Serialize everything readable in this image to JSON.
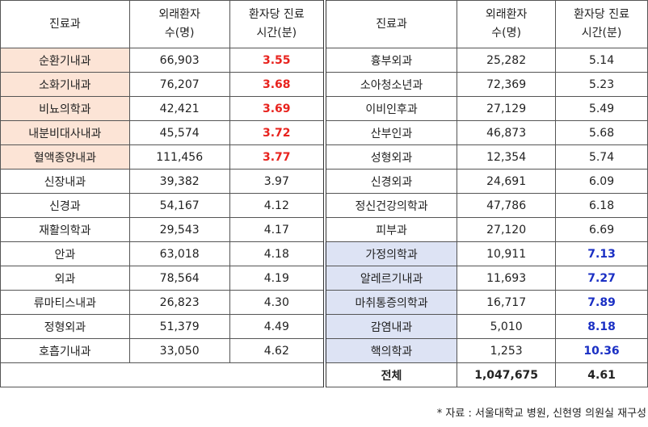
{
  "headers": {
    "dept": "진료과",
    "outpatients_1": "외래환자",
    "outpatients_2": "수(명)",
    "time_1": "환자당 진료",
    "time_2": "시간(분)"
  },
  "left_rows": [
    {
      "dept": "순환기내과",
      "patients": "66,903",
      "time": "3.55",
      "highlight": "low"
    },
    {
      "dept": "소화기내과",
      "patients": "76,207",
      "time": "3.68",
      "highlight": "low"
    },
    {
      "dept": "비뇨의학과",
      "patients": "42,421",
      "time": "3.69",
      "highlight": "low"
    },
    {
      "dept": "내분비대사내과",
      "patients": "45,574",
      "time": "3.72",
      "highlight": "low"
    },
    {
      "dept": "혈액종양내과",
      "patients": "111,456",
      "time": "3.77",
      "highlight": "low"
    },
    {
      "dept": "신장내과",
      "patients": "39,382",
      "time": "3.97",
      "highlight": "none"
    },
    {
      "dept": "신경과",
      "patients": "54,167",
      "time": "4.12",
      "highlight": "none"
    },
    {
      "dept": "재활의학과",
      "patients": "29,543",
      "time": "4.17",
      "highlight": "none"
    },
    {
      "dept": "안과",
      "patients": "63,018",
      "time": "4.18",
      "highlight": "none"
    },
    {
      "dept": "외과",
      "patients": "78,564",
      "time": "4.19",
      "highlight": "none"
    },
    {
      "dept": "류마티스내과",
      "patients": "26,823",
      "time": "4.30",
      "highlight": "none"
    },
    {
      "dept": "정형외과",
      "patients": "51,379",
      "time": "4.49",
      "highlight": "none"
    },
    {
      "dept": "호흡기내과",
      "patients": "33,050",
      "time": "4.62",
      "highlight": "none"
    }
  ],
  "right_rows": [
    {
      "dept": "흉부외과",
      "patients": "25,282",
      "time": "5.14",
      "highlight": "none"
    },
    {
      "dept": "소아청소년과",
      "patients": "72,369",
      "time": "5.23",
      "highlight": "none"
    },
    {
      "dept": "이비인후과",
      "patients": "27,129",
      "time": "5.49",
      "highlight": "none"
    },
    {
      "dept": "산부인과",
      "patients": "46,873",
      "time": "5.68",
      "highlight": "none"
    },
    {
      "dept": "성형외과",
      "patients": "12,354",
      "time": "5.74",
      "highlight": "none"
    },
    {
      "dept": "신경외과",
      "patients": "24,691",
      "time": "6.09",
      "highlight": "none"
    },
    {
      "dept": "정신건강의학과",
      "patients": "47,786",
      "time": "6.18",
      "highlight": "none"
    },
    {
      "dept": "피부과",
      "patients": "27,120",
      "time": "6.69",
      "highlight": "none"
    },
    {
      "dept": "가정의학과",
      "patients": "10,911",
      "time": "7.13",
      "highlight": "high"
    },
    {
      "dept": "알레르기내과",
      "patients": "11,693",
      "time": "7.27",
      "highlight": "high"
    },
    {
      "dept": "마취통증의학과",
      "patients": "16,717",
      "time": "7.89",
      "highlight": "high"
    },
    {
      "dept": "감염내과",
      "patients": "5,010",
      "time": "8.18",
      "highlight": "high"
    },
    {
      "dept": "핵의학과",
      "patients": "1,253",
      "time": "10.36",
      "highlight": "high"
    }
  ],
  "total": {
    "label": "전체",
    "patients": "1,047,675",
    "time": "4.61"
  },
  "source_note": "* 자료 : 서울대학교 병원, 신현영 의원실 재구성",
  "colors": {
    "low_bg": "#fce4d6",
    "low_text": "#e8231e",
    "high_bg": "#dde3f4",
    "high_text": "#1a2fc4"
  }
}
